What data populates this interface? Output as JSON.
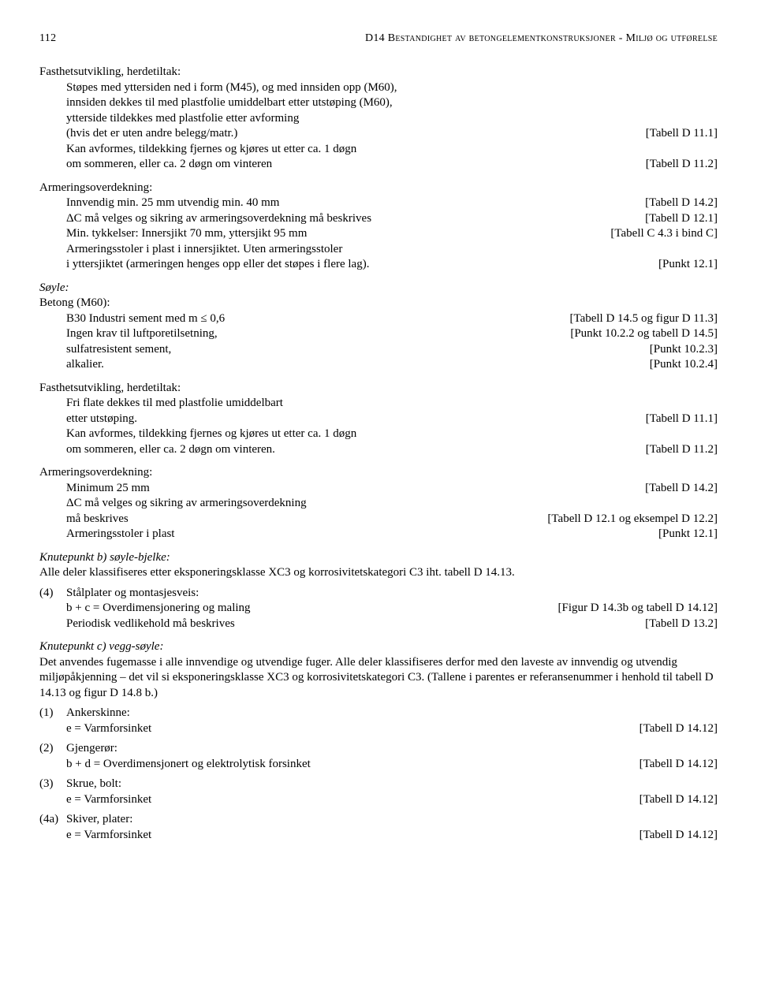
{
  "header": {
    "page": "112",
    "title": "D14  Bestandighet av betongelementkonstruksjoner - Miljø og utførelse"
  },
  "block1": {
    "heading": "Fasthetsutvikling, herdetiltak:",
    "l1": "Støpes med yttersiden ned i form (M45), og med innsiden opp (M60),",
    "l2": "innsiden dekkes til med plastfolie umiddelbart etter utstøping (M60),",
    "l3": "ytterside tildekkes med plastfolie etter avforming",
    "l4_left": "(hvis det er uten andre belegg/matr.)",
    "l4_right": "[Tabell D 11.1]",
    "l5": "Kan avformes, tildekking fjernes og kjøres ut etter ca. 1 døgn",
    "l6_left": "om sommeren, eller ca. 2 døgn om vinteren",
    "l6_right": "[Tabell D 11.2]"
  },
  "block2": {
    "heading": "Armeringsoverdekning:",
    "r1_left": "Innvendig min. 25 mm utvendig min. 40 mm",
    "r1_right": "[Tabell D 14.2]",
    "r2_left": "ΔC må velges og sikring av armeringsoverdekning må beskrives",
    "r2_right": "[Tabell D 12.1]",
    "r3_left": "Min. tykkelser: Innersjikt 70 mm, yttersjikt 95 mm",
    "r3_right": "[Tabell C 4.3 i bind C]",
    "r4": "Armeringsstoler i plast i innersjiktet. Uten armeringsstoler",
    "r5_left": "i yttersjiktet (armeringen henges opp eller det støpes i flere lag).",
    "r5_right": "[Punkt 12.1]"
  },
  "soyle": {
    "title": "Søyle:",
    "sub": "Betong (M60):",
    "r1_left": "B30 Industri sement med m ≤ 0,6",
    "r1_right": "[Tabell D 14.5 og figur D 11.3]",
    "r2_left": "Ingen krav til luftporetilsetning,",
    "r2_right": "[Punkt 10.2.2 og tabell D 14.5]",
    "r3_left": "sulfatresistent sement,",
    "r3_right": "[Punkt 10.2.3]",
    "r4_left": "alkalier.",
    "r4_right": "[Punkt 10.2.4]"
  },
  "block3": {
    "heading": "Fasthetsutvikling, herdetiltak:",
    "l1": "Fri flate dekkes til med plastfolie umiddelbart",
    "r1_left": "etter utstøping.",
    "r1_right": "[Tabell D 11.1]",
    "l2": "Kan avformes, tildekking fjernes og kjøres ut etter ca. 1 døgn",
    "r2_left": "om sommeren, eller ca. 2 døgn om vinteren.",
    "r2_right": "[Tabell D 11.2]"
  },
  "block4": {
    "heading": "Armeringsoverdekning:",
    "r1_left": "Minimum 25 mm",
    "r1_right": "[Tabell D 14.2]",
    "l2": "ΔC må velges og sikring av armeringsoverdekning",
    "r2_left": "må beskrives",
    "r2_right": "[Tabell D 12.1 og eksempel D 12.2]",
    "r3_left": "Armeringsstoler i plast",
    "r3_right": "[Punkt 12.1]"
  },
  "knuteB": {
    "title": "Knutepunkt b) søyle-bjelke:",
    "p": "Alle deler klassifiseres etter eksponeringsklasse XC3 og korrosivitetskategori C3 iht. tabell D 14.13.",
    "item4_num": "(4)",
    "item4_l1": "Stålplater og montasjesveis:",
    "item4_r1_left": "b + c = Overdimensjonering og maling",
    "item4_r1_right": "[Figur D 14.3b og tabell D 14.12]",
    "item4_r2_left": "Periodisk vedlikehold må beskrives",
    "item4_r2_right": "[Tabell D 13.2]"
  },
  "knuteC": {
    "title": "Knutepunkt c) vegg-søyle:",
    "p": "Det anvendes fugemasse i alle innvendige og utvendige fuger. Alle deler klassifiseres derfor med den laveste av innvendig og utvendig miljøpåkjenning – det vil si eksponeringsklasse XC3 og korrosivitetskategori C3. (Tallene i parentes er referansenummer i henhold til tabell D 14.13 og figur D 14.8 b.)",
    "i1_num": "(1)",
    "i1_label": "Ankerskinne:",
    "i1_left": "e = Varmforsinket",
    "i1_right": "[Tabell D 14.12]",
    "i2_num": "(2)",
    "i2_label": "Gjengerør:",
    "i2_left": "b + d = Overdimensjonert og elektrolytisk forsinket",
    "i2_right": "[Tabell D 14.12]",
    "i3_num": "(3)",
    "i3_label": "Skrue, bolt:",
    "i3_left": "e = Varmforsinket",
    "i3_right": "[Tabell D 14.12]",
    "i4_num": "(4a)",
    "i4_label": "Skiver, plater:",
    "i4_left": "e = Varmforsinket",
    "i4_right": "[Tabell D 14.12]"
  }
}
